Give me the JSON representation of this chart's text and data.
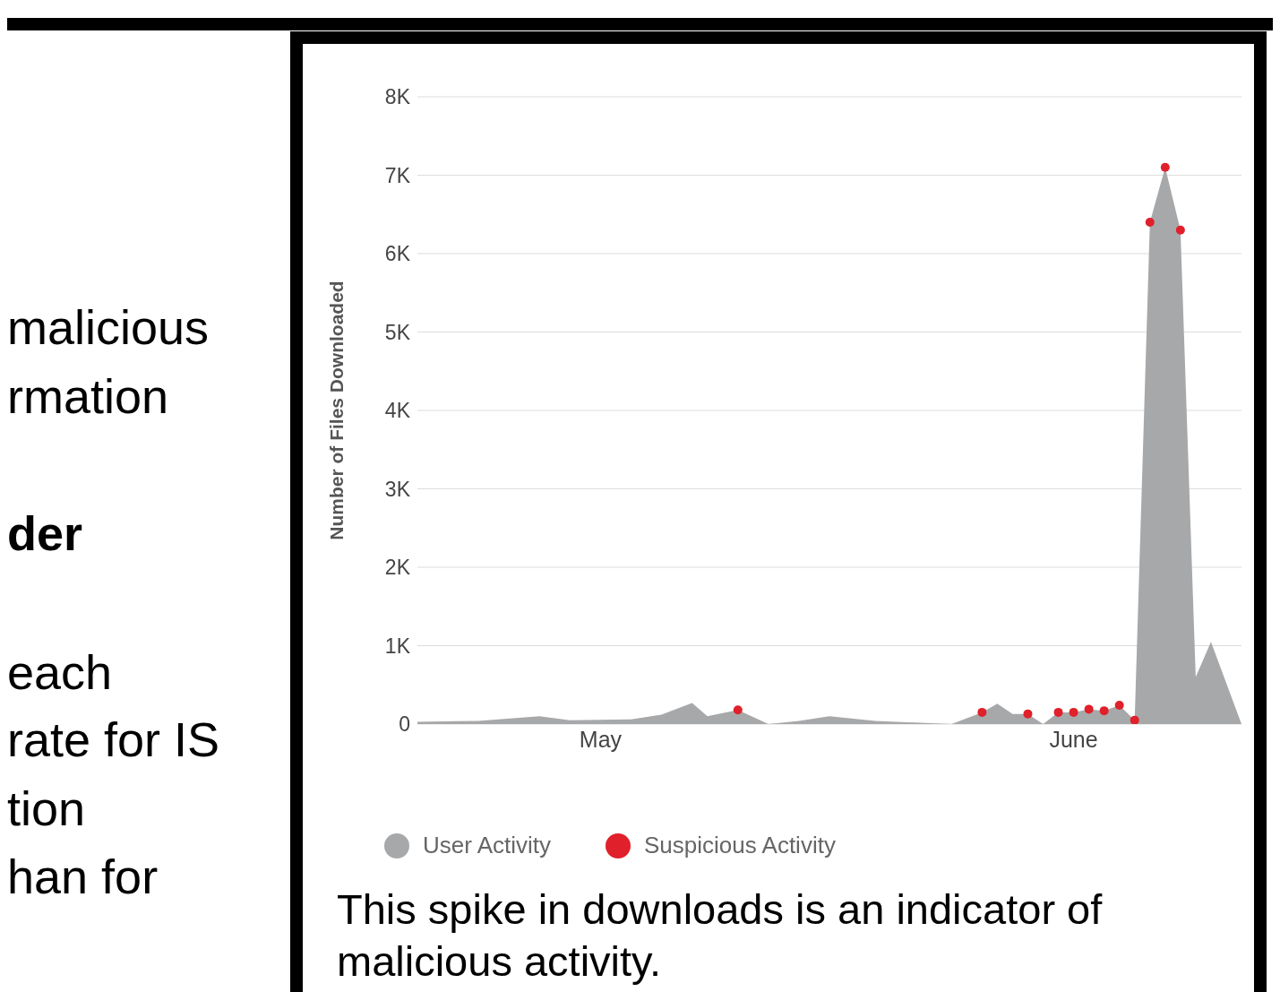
{
  "chart_data": {
    "type": "area",
    "ylabel": "Number of Files Downloaded",
    "xlim": [
      "--04-19",
      "--06-12"
    ],
    "xticks": [
      {
        "value": "--05-01",
        "label": "May"
      },
      {
        "value": "--06-01",
        "label": "June"
      }
    ],
    "ylim": [
      0,
      8000
    ],
    "yticks": [
      0,
      {
        "value": 1000,
        "label": "1K"
      },
      {
        "value": 2000,
        "label": "2K"
      },
      {
        "value": 3000,
        "label": "3K"
      },
      {
        "value": 4000,
        "label": "4K"
      },
      {
        "value": 5000,
        "label": "5K"
      },
      {
        "value": 6000,
        "label": "6K"
      },
      {
        "value": 7000,
        "label": "7K"
      },
      {
        "value": 8000,
        "label": "8K"
      }
    ],
    "grid": "y",
    "legend": "bottom left",
    "tick_labels": "xy",
    "series": [
      {
        "name": "User Activity",
        "color": "#a7a8aa",
        "x": [
          "--04-19",
          "--04-23",
          "--04-27",
          "--04-29",
          "--05-03",
          "--05-05",
          "--05-07",
          "--05-08",
          "--05-10",
          "--05-12",
          "--05-14",
          "--05-16",
          "--05-19",
          "--05-24",
          "--05-26",
          "--05-27",
          "--05-28",
          "--05-29",
          "--05-30",
          "--05-31",
          "--06-01",
          "--06-02",
          "--06-03",
          "--06-04",
          "--06-05",
          "--06-06",
          "--06-07",
          "--06-08",
          "--06-09",
          "--06-10",
          "--06-12"
        ],
        "values": [
          30,
          40,
          100,
          50,
          60,
          120,
          270,
          100,
          180,
          0,
          40,
          100,
          40,
          0,
          150,
          260,
          130,
          130,
          0,
          150,
          150,
          190,
          170,
          240,
          50,
          6400,
          7100,
          6300,
          600,
          1050,
          0
        ]
      },
      {
        "name": "Suspicious Activity",
        "type": "scatter",
        "color": "#e0202a",
        "marker": "circle",
        "x": [
          "--05-10",
          "--05-26",
          "--05-29",
          "--05-31",
          "--06-01",
          "--06-02",
          "--06-03",
          "--06-04",
          "--06-05",
          "--06-06",
          "--06-07",
          "--06-08"
        ],
        "values": [
          180,
          150,
          130,
          150,
          150,
          190,
          170,
          240,
          50,
          6400,
          7100,
          6300
        ]
      }
    ],
    "annotations": [
      "malicious",
      "rmation",
      "der",
      "each",
      "rate for IS",
      "tion",
      "han for",
      "This spike in downloads is an indicator of malicious activity."
    ]
  }
}
